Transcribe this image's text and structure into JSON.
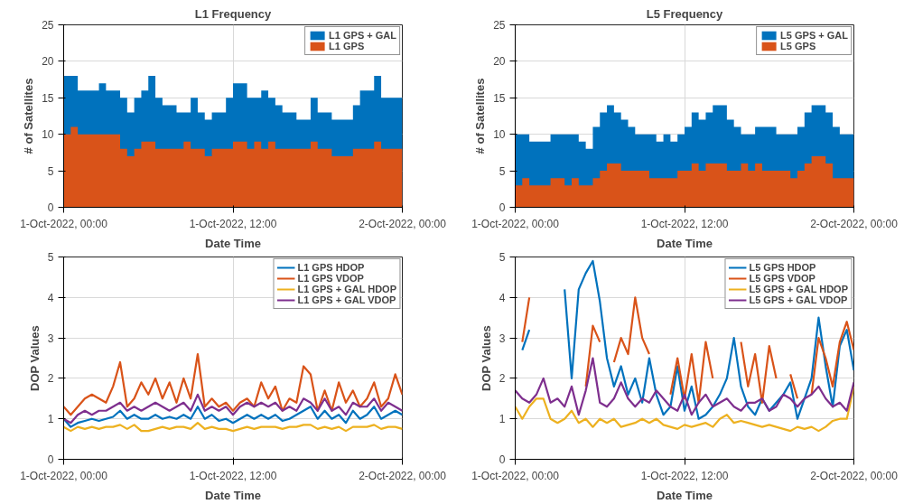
{
  "chart_data": [
    {
      "type": "area",
      "title": "L1 Frequency",
      "xlabel": "Date Time",
      "ylabel": "# of Satellites",
      "x": [
        "2022-10-01T00:00",
        "2022-10-01T00:30",
        "2022-10-01T01:00",
        "2022-10-01T01:30",
        "2022-10-01T02:00",
        "2022-10-01T02:30",
        "2022-10-01T03:00",
        "2022-10-01T03:30",
        "2022-10-01T04:00",
        "2022-10-01T04:30",
        "2022-10-01T05:00",
        "2022-10-01T05:30",
        "2022-10-01T06:00",
        "2022-10-01T06:30",
        "2022-10-01T07:00",
        "2022-10-01T07:30",
        "2022-10-01T08:00",
        "2022-10-01T08:30",
        "2022-10-01T09:00",
        "2022-10-01T09:30",
        "2022-10-01T10:00",
        "2022-10-01T10:30",
        "2022-10-01T11:00",
        "2022-10-01T11:30",
        "2022-10-01T12:00",
        "2022-10-01T12:30",
        "2022-10-01T13:00",
        "2022-10-01T13:30",
        "2022-10-01T14:00",
        "2022-10-01T14:30",
        "2022-10-01T15:00",
        "2022-10-01T15:30",
        "2022-10-01T16:00",
        "2022-10-01T16:30",
        "2022-10-01T17:00",
        "2022-10-01T17:30",
        "2022-10-01T18:00",
        "2022-10-01T18:30",
        "2022-10-01T19:00",
        "2022-10-01T19:30",
        "2022-10-01T20:00",
        "2022-10-01T20:30",
        "2022-10-01T21:00",
        "2022-10-01T21:30",
        "2022-10-01T22:00",
        "2022-10-01T22:30",
        "2022-10-01T23:00",
        "2022-10-01T23:30",
        "2022-10-02T00:00"
      ],
      "series": [
        {
          "name": "L1 GPS + GAL",
          "color": "#0072bd",
          "values": [
            18,
            18,
            16,
            16,
            16,
            17,
            16,
            16,
            15,
            13,
            15,
            16,
            18,
            15,
            14,
            14,
            13,
            13,
            15,
            13,
            12,
            13,
            13,
            15,
            17,
            17,
            15,
            15,
            16,
            15,
            14,
            13,
            13,
            12,
            12,
            15,
            13,
            13,
            12,
            12,
            12,
            14,
            16,
            16,
            18,
            15,
            15,
            15,
            13
          ]
        },
        {
          "name": "L1 GPS",
          "color": "#d95319",
          "values": [
            10,
            11,
            10,
            10,
            10,
            10,
            10,
            10,
            8,
            7,
            8,
            9,
            9,
            8,
            8,
            8,
            8,
            9,
            8,
            8,
            7,
            8,
            8,
            8,
            9,
            9,
            8,
            9,
            8,
            9,
            8,
            8,
            8,
            8,
            8,
            9,
            8,
            8,
            7,
            7,
            7,
            8,
            8,
            8,
            9,
            8,
            8,
            8,
            8
          ]
        }
      ],
      "xlim": [
        "2022-10-01T00:00",
        "2022-10-02T00:00"
      ],
      "ylim": [
        0,
        25
      ],
      "yticks": [
        0,
        5,
        10,
        15,
        20,
        25
      ],
      "xticks": [
        {
          "value": "2022-10-01T00:00",
          "label": "1-Oct-2022, 00:00"
        },
        {
          "value": "2022-10-01T12:00",
          "label": "1-Oct-2022, 12:00"
        },
        {
          "value": "2022-10-02T00:00",
          "label": "2-Oct-2022, 00:00"
        }
      ],
      "grid": true,
      "legend": "top right"
    },
    {
      "type": "area",
      "title": "L5 Frequency",
      "xlabel": "Date Time",
      "ylabel": "# of Satellites",
      "x": [
        "2022-10-01T00:00",
        "2022-10-01T00:30",
        "2022-10-01T01:00",
        "2022-10-01T01:30",
        "2022-10-01T02:00",
        "2022-10-01T02:30",
        "2022-10-01T03:00",
        "2022-10-01T03:30",
        "2022-10-01T04:00",
        "2022-10-01T04:30",
        "2022-10-01T05:00",
        "2022-10-01T05:30",
        "2022-10-01T06:00",
        "2022-10-01T06:30",
        "2022-10-01T07:00",
        "2022-10-01T07:30",
        "2022-10-01T08:00",
        "2022-10-01T08:30",
        "2022-10-01T09:00",
        "2022-10-01T09:30",
        "2022-10-01T10:00",
        "2022-10-01T10:30",
        "2022-10-01T11:00",
        "2022-10-01T11:30",
        "2022-10-01T12:00",
        "2022-10-01T12:30",
        "2022-10-01T13:00",
        "2022-10-01T13:30",
        "2022-10-01T14:00",
        "2022-10-01T14:30",
        "2022-10-01T15:00",
        "2022-10-01T15:30",
        "2022-10-01T16:00",
        "2022-10-01T16:30",
        "2022-10-01T17:00",
        "2022-10-01T17:30",
        "2022-10-01T18:00",
        "2022-10-01T18:30",
        "2022-10-01T19:00",
        "2022-10-01T19:30",
        "2022-10-01T20:00",
        "2022-10-01T20:30",
        "2022-10-01T21:00",
        "2022-10-01T21:30",
        "2022-10-01T22:00",
        "2022-10-01T22:30",
        "2022-10-01T23:00",
        "2022-10-01T23:30",
        "2022-10-02T00:00"
      ],
      "series": [
        {
          "name": "L5 GPS + GAL",
          "color": "#0072bd",
          "values": [
            10,
            10,
            9,
            9,
            9,
            10,
            10,
            10,
            10,
            9,
            8,
            11,
            13,
            14,
            13,
            12,
            11,
            10,
            10,
            10,
            9,
            10,
            9,
            10,
            11,
            13,
            12,
            13,
            14,
            14,
            12,
            11,
            10,
            10,
            11,
            11,
            11,
            10,
            10,
            10,
            11,
            13,
            14,
            14,
            13,
            11,
            10,
            10,
            8
          ]
        },
        {
          "name": "L5 GPS",
          "color": "#d95319",
          "values": [
            3,
            4,
            3,
            3,
            3,
            4,
            4,
            3,
            4,
            3,
            3,
            4,
            5,
            6,
            6,
            5,
            5,
            5,
            5,
            4,
            4,
            4,
            4,
            5,
            5,
            6,
            5,
            6,
            6,
            6,
            5,
            5,
            6,
            5,
            6,
            5,
            5,
            5,
            5,
            4,
            5,
            6,
            7,
            7,
            6,
            4,
            4,
            4,
            3
          ]
        }
      ],
      "xlim": [
        "2022-10-01T00:00",
        "2022-10-02T00:00"
      ],
      "ylim": [
        0,
        25
      ],
      "yticks": [
        0,
        5,
        10,
        15,
        20,
        25
      ],
      "xticks": [
        {
          "value": "2022-10-01T00:00",
          "label": "1-Oct-2022, 00:00"
        },
        {
          "value": "2022-10-01T12:00",
          "label": "1-Oct-2022, 12:00"
        },
        {
          "value": "2022-10-02T00:00",
          "label": "2-Oct-2022, 00:00"
        }
      ],
      "grid": true,
      "legend": "top right"
    },
    {
      "type": "line",
      "xlabel": "Date Time",
      "ylabel": "DOP Values",
      "x": [
        "2022-10-01T00:00",
        "2022-10-01T00:30",
        "2022-10-01T01:00",
        "2022-10-01T01:30",
        "2022-10-01T02:00",
        "2022-10-01T02:30",
        "2022-10-01T03:00",
        "2022-10-01T03:30",
        "2022-10-01T04:00",
        "2022-10-01T04:30",
        "2022-10-01T05:00",
        "2022-10-01T05:30",
        "2022-10-01T06:00",
        "2022-10-01T06:30",
        "2022-10-01T07:00",
        "2022-10-01T07:30",
        "2022-10-01T08:00",
        "2022-10-01T08:30",
        "2022-10-01T09:00",
        "2022-10-01T09:30",
        "2022-10-01T10:00",
        "2022-10-01T10:30",
        "2022-10-01T11:00",
        "2022-10-01T11:30",
        "2022-10-01T12:00",
        "2022-10-01T12:30",
        "2022-10-01T13:00",
        "2022-10-01T13:30",
        "2022-10-01T14:00",
        "2022-10-01T14:30",
        "2022-10-01T15:00",
        "2022-10-01T15:30",
        "2022-10-01T16:00",
        "2022-10-01T16:30",
        "2022-10-01T17:00",
        "2022-10-01T17:30",
        "2022-10-01T18:00",
        "2022-10-01T18:30",
        "2022-10-01T19:00",
        "2022-10-01T19:30",
        "2022-10-01T20:00",
        "2022-10-01T20:30",
        "2022-10-01T21:00",
        "2022-10-01T21:30",
        "2022-10-01T22:00",
        "2022-10-01T22:30",
        "2022-10-01T23:00",
        "2022-10-01T23:30",
        "2022-10-02T00:00"
      ],
      "series": [
        {
          "name": "L1 GPS HDOP",
          "color": "#0072bd",
          "values": [
            1.0,
            0.8,
            0.9,
            0.95,
            1.0,
            0.95,
            1.0,
            1.05,
            1.2,
            1.0,
            1.1,
            1.0,
            1.0,
            1.1,
            1.0,
            1.05,
            1.0,
            1.1,
            1.0,
            1.3,
            1.0,
            1.1,
            0.95,
            1.0,
            0.9,
            1.0,
            1.1,
            1.0,
            1.1,
            1.0,
            1.1,
            0.95,
            1.0,
            1.1,
            1.2,
            1.3,
            1.0,
            1.2,
            1.0,
            1.1,
            0.9,
            1.2,
            1.0,
            1.1,
            1.3,
            1.0,
            1.1,
            1.2,
            1.1
          ]
        },
        {
          "name": "L1 GPS VDOP",
          "color": "#d95319",
          "values": [
            1.3,
            1.1,
            1.3,
            1.5,
            1.6,
            1.5,
            1.4,
            1.8,
            2.4,
            1.3,
            1.5,
            1.9,
            1.6,
            2.0,
            1.5,
            1.9,
            1.4,
            2.0,
            1.5,
            2.6,
            1.3,
            1.5,
            1.3,
            1.4,
            1.2,
            1.4,
            1.5,
            1.3,
            1.9,
            1.5,
            1.8,
            1.2,
            1.5,
            1.4,
            2.3,
            2.1,
            1.2,
            1.7,
            1.2,
            1.9,
            1.4,
            1.7,
            1.3,
            1.5,
            1.9,
            1.3,
            1.5,
            2.1,
            1.6
          ]
        },
        {
          "name": "L1 GPS + GAL HDOP",
          "color": "#edb120",
          "values": [
            0.8,
            0.7,
            0.8,
            0.75,
            0.8,
            0.75,
            0.8,
            0.8,
            0.85,
            0.75,
            0.85,
            0.7,
            0.7,
            0.75,
            0.8,
            0.75,
            0.8,
            0.8,
            0.75,
            0.9,
            0.75,
            0.8,
            0.75,
            0.75,
            0.7,
            0.75,
            0.8,
            0.75,
            0.8,
            0.8,
            0.8,
            0.75,
            0.8,
            0.8,
            0.85,
            0.85,
            0.75,
            0.8,
            0.75,
            0.8,
            0.7,
            0.8,
            0.8,
            0.8,
            0.85,
            0.75,
            0.8,
            0.8,
            0.75
          ]
        },
        {
          "name": "L1 GPS + GAL VDOP",
          "color": "#7e2f8e",
          "values": [
            1.0,
            0.9,
            1.1,
            1.2,
            1.1,
            1.2,
            1.2,
            1.3,
            1.4,
            1.2,
            1.3,
            1.2,
            1.3,
            1.4,
            1.3,
            1.2,
            1.3,
            1.4,
            1.2,
            1.6,
            1.2,
            1.3,
            1.2,
            1.3,
            1.1,
            1.3,
            1.4,
            1.3,
            1.4,
            1.3,
            1.4,
            1.2,
            1.3,
            1.2,
            1.5,
            1.4,
            1.2,
            1.5,
            1.2,
            1.3,
            1.1,
            1.4,
            1.3,
            1.3,
            1.5,
            1.2,
            1.4,
            1.3,
            1.2
          ]
        }
      ],
      "xlim": [
        "2022-10-01T00:00",
        "2022-10-02T00:00"
      ],
      "ylim": [
        0,
        5
      ],
      "yticks": [
        0,
        1,
        2,
        3,
        4,
        5
      ],
      "xticks": [
        {
          "value": "2022-10-01T00:00",
          "label": "1-Oct-2022, 00:00"
        },
        {
          "value": "2022-10-01T12:00",
          "label": "1-Oct-2022, 12:00"
        },
        {
          "value": "2022-10-02T00:00",
          "label": "2-Oct-2022, 00:00"
        }
      ],
      "grid": true,
      "legend": "top right",
      "line_style": "solid"
    },
    {
      "type": "line",
      "xlabel": "Date Time",
      "ylabel": "DOP Values",
      "x": [
        "2022-10-01T00:00",
        "2022-10-01T00:30",
        "2022-10-01T01:00",
        "2022-10-01T01:30",
        "2022-10-01T02:00",
        "2022-10-01T02:30",
        "2022-10-01T03:00",
        "2022-10-01T03:30",
        "2022-10-01T04:00",
        "2022-10-01T04:30",
        "2022-10-01T05:00",
        "2022-10-01T05:30",
        "2022-10-01T06:00",
        "2022-10-01T06:30",
        "2022-10-01T07:00",
        "2022-10-01T07:30",
        "2022-10-01T08:00",
        "2022-10-01T08:30",
        "2022-10-01T09:00",
        "2022-10-01T09:30",
        "2022-10-01T10:00",
        "2022-10-01T10:30",
        "2022-10-01T11:00",
        "2022-10-01T11:30",
        "2022-10-01T12:00",
        "2022-10-01T12:30",
        "2022-10-01T13:00",
        "2022-10-01T13:30",
        "2022-10-01T14:00",
        "2022-10-01T14:30",
        "2022-10-01T15:00",
        "2022-10-01T15:30",
        "2022-10-01T16:00",
        "2022-10-01T16:30",
        "2022-10-01T17:00",
        "2022-10-01T17:30",
        "2022-10-01T18:00",
        "2022-10-01T18:30",
        "2022-10-01T19:00",
        "2022-10-01T19:30",
        "2022-10-01T20:00",
        "2022-10-01T20:30",
        "2022-10-01T21:00",
        "2022-10-01T21:30",
        "2022-10-01T22:00",
        "2022-10-01T22:30",
        "2022-10-01T23:00",
        "2022-10-01T23:30",
        "2022-10-02T00:00"
      ],
      "series": [
        {
          "name": "L5 GPS HDOP",
          "color": "#0072bd",
          "values": [
            null,
            2.7,
            3.2,
            null,
            null,
            null,
            null,
            4.2,
            2.0,
            4.2,
            4.6,
            4.9,
            3.9,
            2.5,
            1.8,
            2.3,
            1.6,
            2.0,
            1.4,
            2.5,
            1.6,
            1.1,
            1.3,
            2.3,
            1.2,
            1.8,
            1.0,
            1.1,
            1.3,
            1.6,
            2.0,
            3.0,
            1.8,
            1.3,
            1.1,
            1.5,
            1.2,
            1.4,
            1.6,
            1.9,
            1.0,
            1.5,
            2.0,
            3.5,
            2.3,
            1.3,
            2.8,
            3.2,
            2.2
          ]
        },
        {
          "name": "L5 GPS VDOP",
          "color": "#d95319",
          "values": [
            null,
            2.9,
            4.0,
            null,
            null,
            null,
            null,
            null,
            null,
            null,
            1.8,
            3.3,
            2.9,
            null,
            2.4,
            3.0,
            2.6,
            4.0,
            3.0,
            2.6,
            null,
            null,
            1.6,
            2.5,
            1.5,
            2.6,
            1.4,
            2.9,
            2.0,
            null,
            null,
            null,
            2.9,
            1.8,
            2.6,
            1.4,
            2.8,
            2.0,
            null,
            2.1,
            1.5,
            null,
            1.6,
            3.0,
            2.5,
            1.8,
            2.9,
            3.4,
            2.7
          ]
        },
        {
          "name": "L5 GPS + GAL HDOP",
          "color": "#edb120",
          "values": [
            1.3,
            1.0,
            1.3,
            1.5,
            1.5,
            1.0,
            0.9,
            1.0,
            1.2,
            0.9,
            1.0,
            0.8,
            1.0,
            0.9,
            1.0,
            0.8,
            0.85,
            0.9,
            1.0,
            0.9,
            1.0,
            0.85,
            0.8,
            0.75,
            0.85,
            0.8,
            0.85,
            0.9,
            0.8,
            1.0,
            1.1,
            0.9,
            0.95,
            0.9,
            0.85,
            0.8,
            0.85,
            0.8,
            0.75,
            0.7,
            0.8,
            0.75,
            0.8,
            0.7,
            0.8,
            0.95,
            1.0,
            1.0,
            1.8
          ]
        },
        {
          "name": "L5 GPS + GAL VDOP",
          "color": "#7e2f8e",
          "values": [
            1.7,
            1.5,
            1.4,
            1.6,
            2.0,
            1.4,
            1.5,
            1.3,
            1.8,
            1.1,
            1.7,
            2.5,
            1.4,
            1.3,
            1.5,
            1.9,
            1.5,
            1.3,
            1.5,
            1.4,
            1.7,
            1.5,
            1.3,
            1.2,
            1.6,
            1.1,
            1.4,
            1.6,
            1.3,
            1.4,
            1.5,
            1.3,
            1.2,
            1.4,
            1.4,
            1.5,
            1.2,
            1.3,
            1.6,
            1.5,
            1.3,
            1.5,
            1.6,
            1.8,
            1.5,
            1.3,
            1.4,
            1.2,
            1.9
          ]
        }
      ],
      "xlim": [
        "2022-10-01T00:00",
        "2022-10-02T00:00"
      ],
      "ylim": [
        0,
        5
      ],
      "yticks": [
        0,
        1,
        2,
        3,
        4,
        5
      ],
      "xticks": [
        {
          "value": "2022-10-01T00:00",
          "label": "1-Oct-2022, 00:00"
        },
        {
          "value": "2022-10-01T12:00",
          "label": "1-Oct-2022, 12:00"
        },
        {
          "value": "2022-10-02T00:00",
          "label": "2-Oct-2022, 00:00"
        }
      ],
      "grid": true,
      "legend": "top right",
      "line_style": "solid"
    }
  ]
}
